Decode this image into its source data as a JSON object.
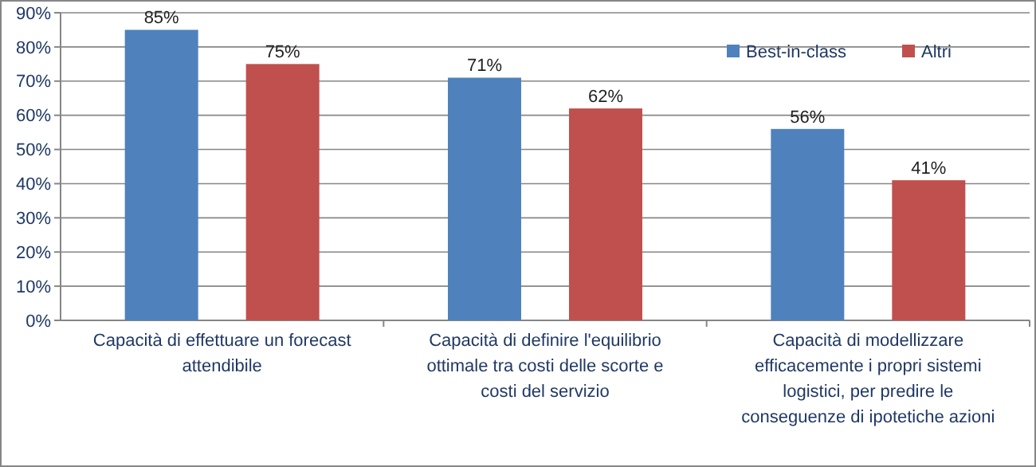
{
  "chart_data": {
    "type": "bar",
    "categories": [
      "Capacità di effettuare un forecast attendibile",
      "Capacità di definire l'equilibrio ottimale tra costi delle scorte e costi del servizio",
      "Capacità di modellizzare efficacemente i propri sistemi logistici, per predire le conseguenze di ipotetiche azioni"
    ],
    "series": [
      {
        "name": "Best-in-class",
        "color": "#4f81bd",
        "values": [
          85,
          71,
          56
        ],
        "value_labels": [
          "85%",
          "71%",
          "56%"
        ]
      },
      {
        "name": "Altri",
        "color": "#c0504d",
        "values": [
          75,
          62,
          41
        ],
        "value_labels": [
          "75%",
          "62%",
          "41%"
        ]
      }
    ],
    "ylim": [
      0,
      90
    ],
    "yticks": [
      {
        "value": 0,
        "label": "0%"
      },
      {
        "value": 10,
        "label": "10%"
      },
      {
        "value": 20,
        "label": "20%"
      },
      {
        "value": 30,
        "label": "30%"
      },
      {
        "value": 40,
        "label": "40%"
      },
      {
        "value": 50,
        "label": "50%"
      },
      {
        "value": 60,
        "label": "60%"
      },
      {
        "value": 70,
        "label": "70%"
      },
      {
        "value": 80,
        "label": "80%"
      },
      {
        "value": 90,
        "label": "90%"
      }
    ],
    "grid": "y",
    "legend": "top right"
  }
}
